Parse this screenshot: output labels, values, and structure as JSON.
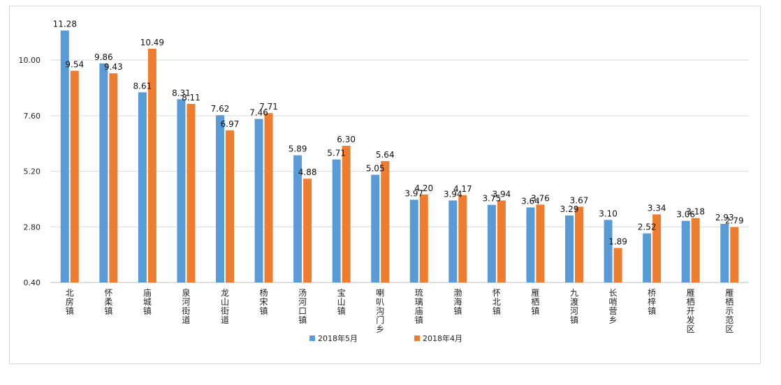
{
  "chart_data": {
    "type": "bar",
    "title": "",
    "xlabel": "",
    "ylabel": "",
    "categories": [
      "北房镇",
      "怀柔镇",
      "庙城镇",
      "泉河街道",
      "龙山街道",
      "杨宋镇",
      "汤河口镇",
      "宝山镇",
      "喇叭沟门乡",
      "琉璃庙镇",
      "渤海镇",
      "怀北镇",
      "雁栖镇",
      "九渡河镇",
      "长哨营乡",
      "桥梓镇",
      "雁栖开发区",
      "雁栖示范区"
    ],
    "series": [
      {
        "name": "2018年5月",
        "color": "#5b9bd5",
        "values": [
          11.28,
          9.86,
          8.61,
          8.31,
          7.62,
          7.46,
          5.89,
          5.71,
          5.05,
          3.97,
          3.94,
          3.75,
          3.64,
          3.29,
          3.1,
          2.52,
          3.06,
          2.93
        ]
      },
      {
        "name": "2018年4月",
        "color": "#ed7d31",
        "values": [
          9.54,
          9.43,
          10.49,
          8.11,
          6.97,
          7.71,
          4.88,
          6.3,
          5.64,
          4.2,
          4.17,
          3.94,
          3.76,
          3.67,
          1.89,
          3.34,
          3.18,
          2.79
        ]
      }
    ],
    "ylim": [
      0.4,
      11.6
    ],
    "yticks": [
      "0.40",
      "2.80",
      "5.20",
      "7.60",
      "10.00"
    ],
    "grid": true,
    "legend": "bottom"
  }
}
